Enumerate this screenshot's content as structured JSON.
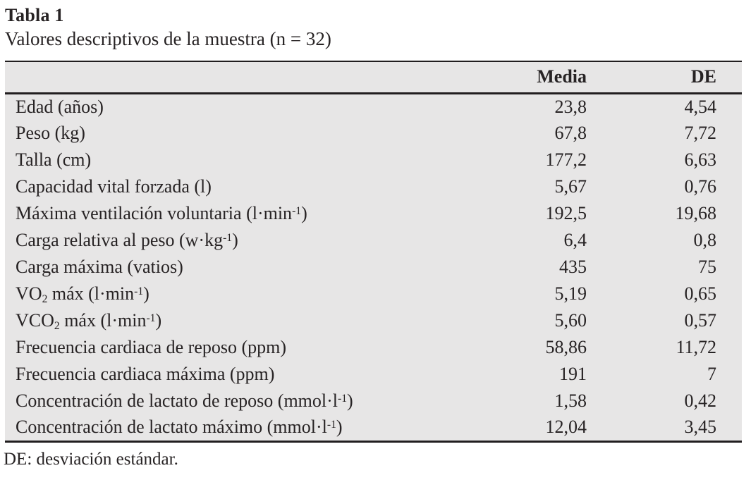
{
  "caption": {
    "label": "Tabla 1",
    "title": "Valores descriptivos de la muestra (n = 32)"
  },
  "table": {
    "columns": [
      {
        "key": "label",
        "label": ""
      },
      {
        "key": "media",
        "label": "Media"
      },
      {
        "key": "de",
        "label": "DE"
      }
    ],
    "rows": [
      {
        "label_parts": [
          {
            "text": "Edad (años)"
          }
        ],
        "media": "23,8",
        "de": "4,54"
      },
      {
        "label_parts": [
          {
            "text": "Peso (kg)"
          }
        ],
        "media": "67,8",
        "de": "7,72"
      },
      {
        "label_parts": [
          {
            "text": "Talla (cm)"
          }
        ],
        "media": "177,2",
        "de": "6,63"
      },
      {
        "label_parts": [
          {
            "text": "Capacidad vital forzada (l)"
          }
        ],
        "media": "5,67",
        "de": "0,76"
      },
      {
        "label_parts": [
          {
            "text": "Máxima ventilación voluntaria (l·min"
          },
          {
            "sup": "-1"
          },
          {
            "text": ")"
          }
        ],
        "media": "192,5",
        "de": "19,68"
      },
      {
        "label_parts": [
          {
            "text": "Carga relativa al peso (w·kg"
          },
          {
            "sup": "-1"
          },
          {
            "text": ")"
          }
        ],
        "media": "6,4",
        "de": "0,8"
      },
      {
        "label_parts": [
          {
            "text": "Carga máxima (vatios)"
          }
        ],
        "media": "435",
        "de": "75"
      },
      {
        "label_parts": [
          {
            "text": "VO"
          },
          {
            "sub": "2"
          },
          {
            "text": " máx (l·min"
          },
          {
            "sup": "-1"
          },
          {
            "text": ")"
          }
        ],
        "media": "5,19",
        "de": "0,65"
      },
      {
        "label_parts": [
          {
            "text": "VCO"
          },
          {
            "sub": "2"
          },
          {
            "text": " máx (l·min"
          },
          {
            "sup": "-1"
          },
          {
            "text": ")"
          }
        ],
        "media": "5,60",
        "de": "0,57"
      },
      {
        "label_parts": [
          {
            "text": "Frecuencia cardiaca de reposo (ppm)"
          }
        ],
        "media": "58,86",
        "de": "11,72"
      },
      {
        "label_parts": [
          {
            "text": "Frecuencia cardiaca máxima (ppm)"
          }
        ],
        "media": "191",
        "de": "7"
      },
      {
        "label_parts": [
          {
            "text": "Concentración de lactato de reposo (mmol·l"
          },
          {
            "sup": "-1"
          },
          {
            "text": ")"
          }
        ],
        "media": "1,58",
        "de": "0,42"
      },
      {
        "label_parts": [
          {
            "text": "Concentración de lactato máximo (mmol·l"
          },
          {
            "sup": "-1"
          },
          {
            "text": ")"
          }
        ],
        "media": "12,04",
        "de": "3,45"
      }
    ]
  },
  "footnote": "DE: desviación estándar.",
  "colors": {
    "table_bg": "#e7e6e6",
    "rule": "#211e1f",
    "text": "#272324"
  }
}
